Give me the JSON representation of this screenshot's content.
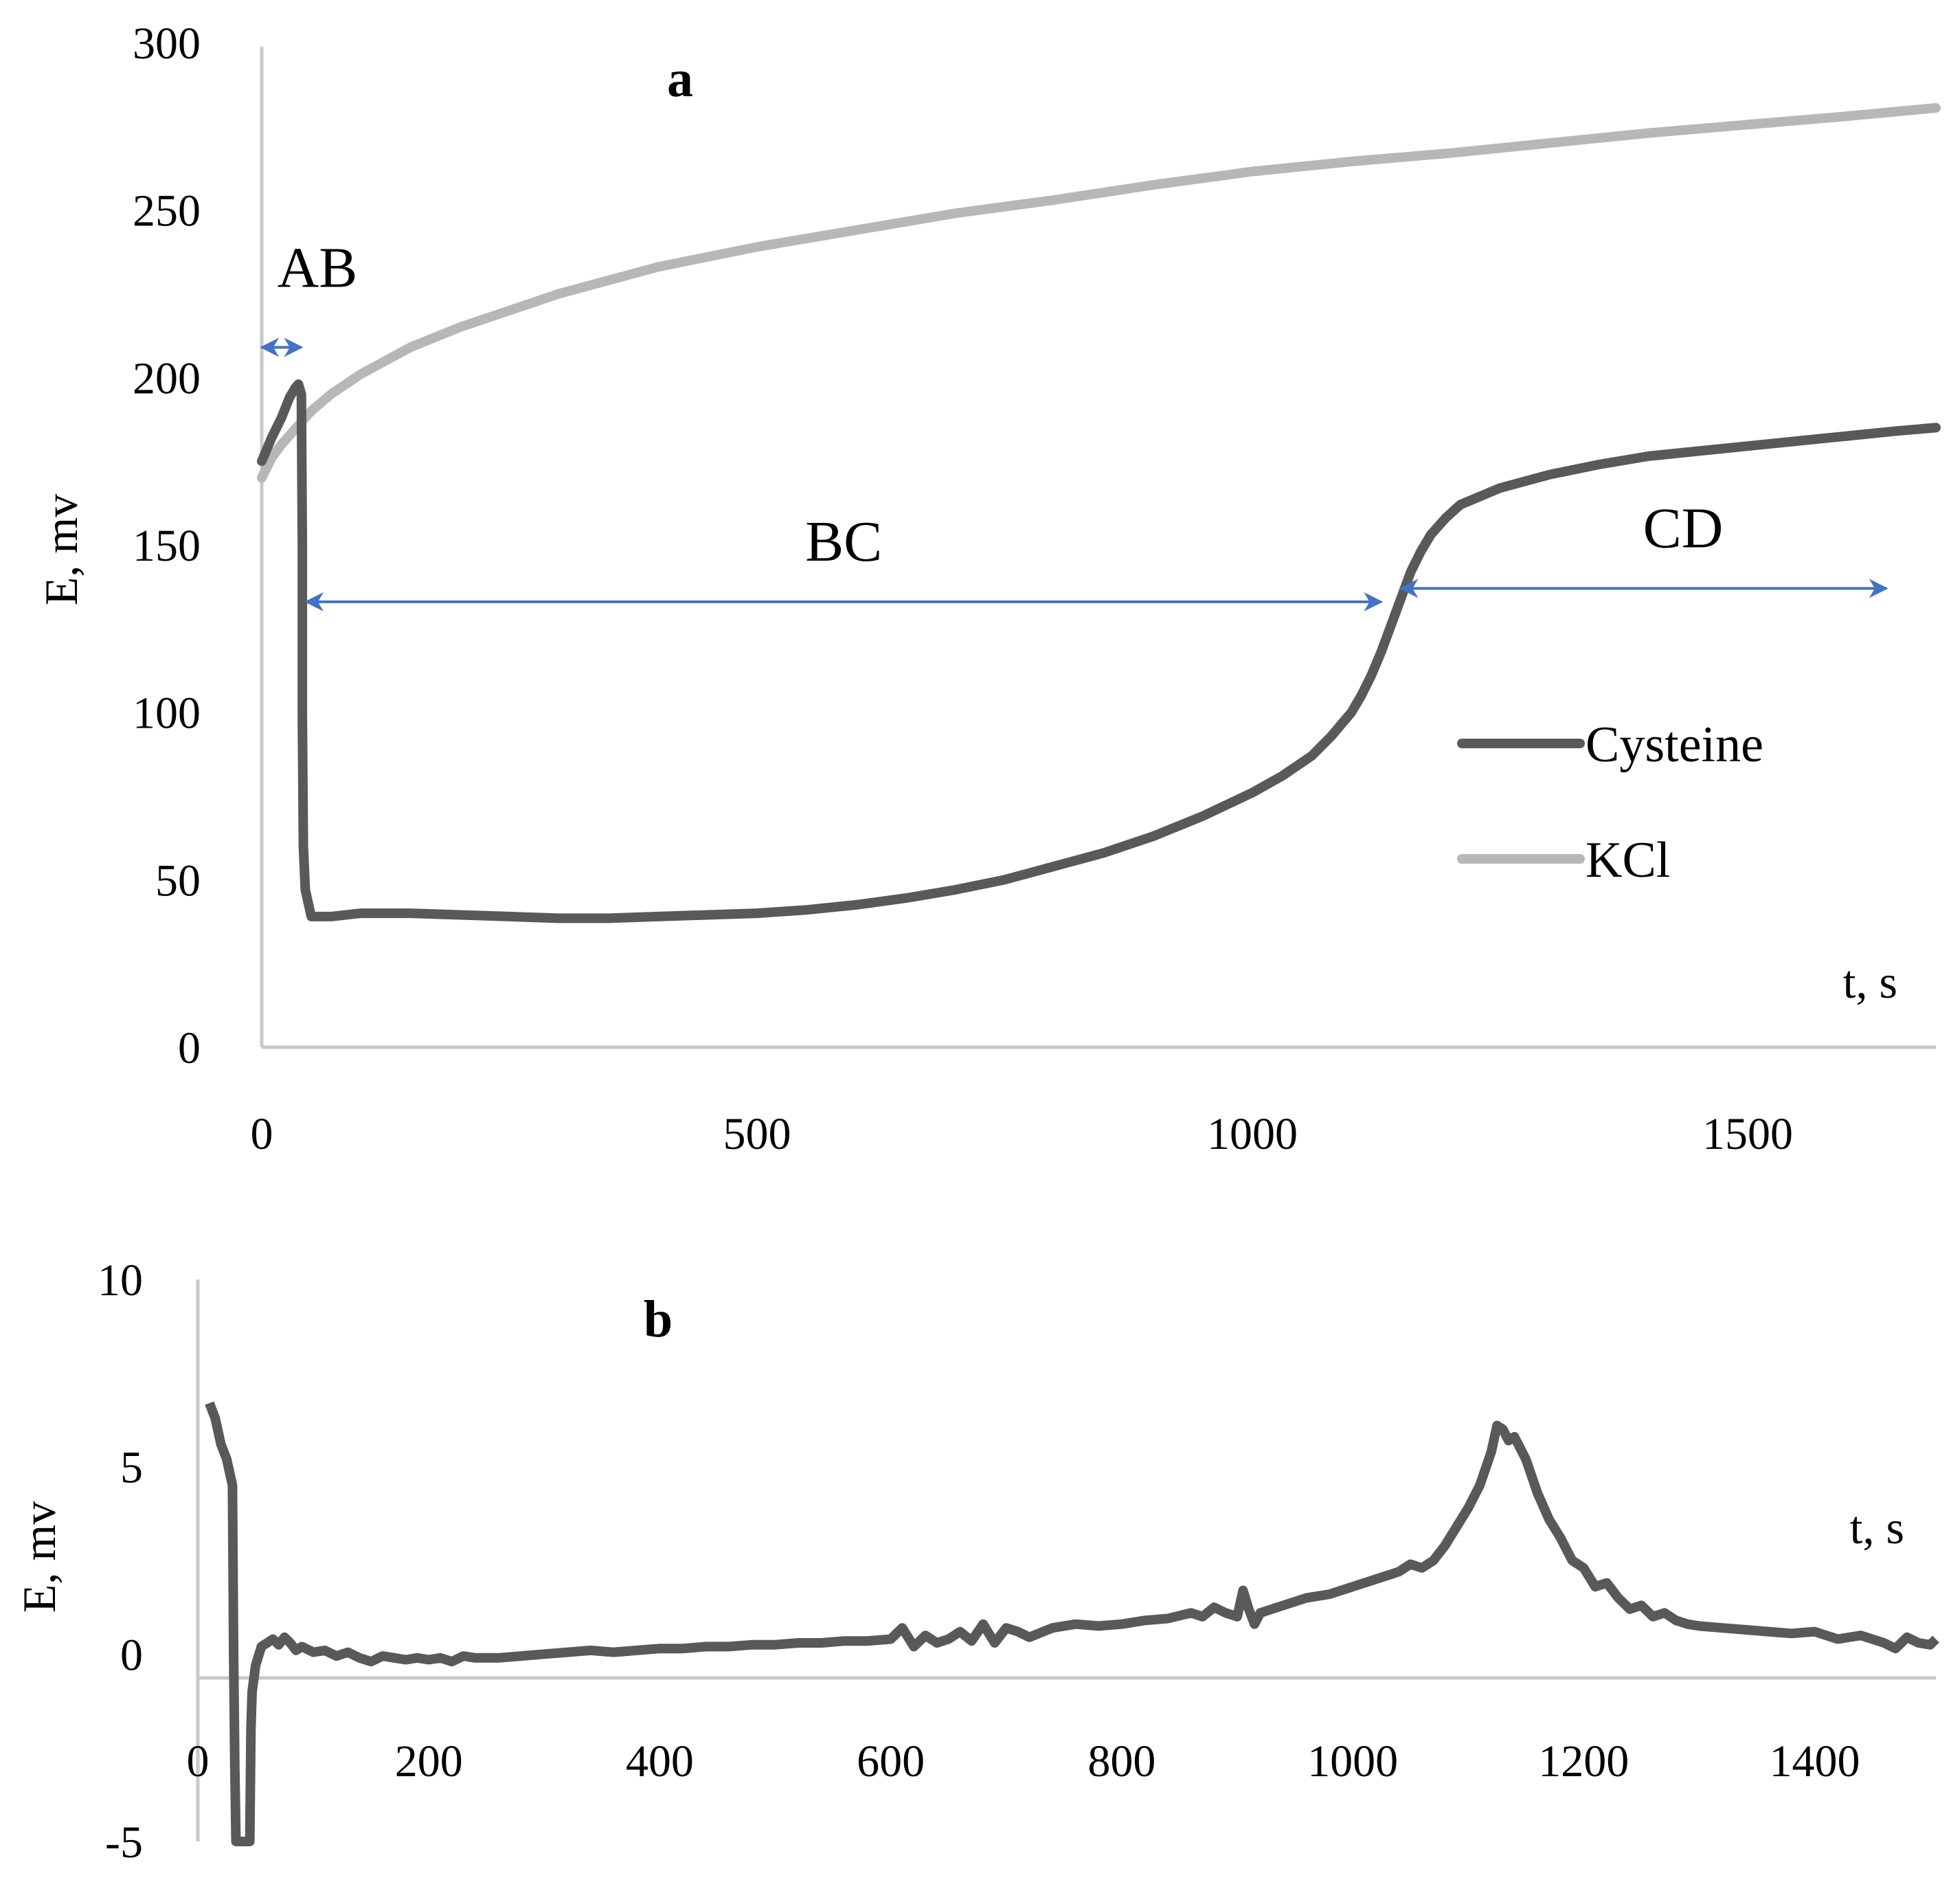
{
  "chart_data": [
    {
      "panel": "a",
      "type": "line",
      "xlabel": "t, s",
      "ylabel": "E, mv",
      "xlim": [
        0,
        1690
      ],
      "ylim": [
        0,
        300
      ],
      "x_ticks": [
        0,
        500,
        1000,
        1500
      ],
      "y_ticks": [
        0,
        50,
        100,
        150,
        200,
        250,
        300
      ],
      "legend": {
        "position": "right-middle",
        "entries": [
          "Cysteine",
          "KCl"
        ]
      },
      "series": [
        {
          "name": "Cysteine",
          "color": "#595959",
          "points": [
            [
              0,
              175
            ],
            [
              10,
              182
            ],
            [
              20,
              188
            ],
            [
              28,
              194
            ],
            [
              34,
              197
            ],
            [
              37,
              198
            ],
            [
              40,
              195
            ],
            [
              41,
              150
            ],
            [
              41,
              100
            ],
            [
              42,
              60
            ],
            [
              44,
              47
            ],
            [
              50,
              39
            ],
            [
              70,
              39
            ],
            [
              100,
              40
            ],
            [
              150,
              40
            ],
            [
              200,
              39.5
            ],
            [
              250,
              39
            ],
            [
              300,
              38.5
            ],
            [
              350,
              38.5
            ],
            [
              400,
              39
            ],
            [
              450,
              39.5
            ],
            [
              500,
              40
            ],
            [
              550,
              41
            ],
            [
              600,
              42.5
            ],
            [
              650,
              44.5
            ],
            [
              700,
              47
            ],
            [
              750,
              50
            ],
            [
              800,
              54
            ],
            [
              850,
              58
            ],
            [
              900,
              63
            ],
            [
              950,
              69
            ],
            [
              1000,
              76
            ],
            [
              1030,
              81
            ],
            [
              1060,
              87
            ],
            [
              1080,
              93
            ],
            [
              1100,
              100
            ],
            [
              1110,
              105
            ],
            [
              1120,
              111
            ],
            [
              1130,
              118
            ],
            [
              1140,
              126
            ],
            [
              1150,
              134
            ],
            [
              1160,
              142
            ],
            [
              1170,
              148
            ],
            [
              1180,
              153
            ],
            [
              1195,
              158
            ],
            [
              1210,
              162
            ],
            [
              1250,
              167
            ],
            [
              1300,
              171
            ],
            [
              1350,
              174
            ],
            [
              1400,
              176.5
            ],
            [
              1450,
              178
            ],
            [
              1500,
              179.5
            ],
            [
              1550,
              181
            ],
            [
              1600,
              182.5
            ],
            [
              1650,
              184
            ],
            [
              1690,
              185
            ]
          ]
        },
        {
          "name": "KCl",
          "color": "#b7b7b7",
          "points": [
            [
              0,
              170
            ],
            [
              10,
              176
            ],
            [
              20,
              180
            ],
            [
              35,
              185
            ],
            [
              50,
              190
            ],
            [
              70,
              195
            ],
            [
              100,
              201
            ],
            [
              150,
              209
            ],
            [
              200,
              215
            ],
            [
              250,
              220
            ],
            [
              300,
              225
            ],
            [
              350,
              229
            ],
            [
              400,
              233
            ],
            [
              450,
              236
            ],
            [
              500,
              239
            ],
            [
              600,
              244
            ],
            [
              700,
              249
            ],
            [
              800,
              253
            ],
            [
              900,
              257.5
            ],
            [
              1000,
              261.5
            ],
            [
              1100,
              264.5
            ],
            [
              1200,
              267
            ],
            [
              1300,
              270
            ],
            [
              1400,
              273
            ],
            [
              1500,
              275.5
            ],
            [
              1600,
              278
            ],
            [
              1690,
              280.5
            ]
          ]
        }
      ],
      "annotations": [
        {
          "label": "AB",
          "from": 0,
          "to": 40,
          "y": 209
        },
        {
          "label": "BC",
          "from": 45,
          "to": 1130,
          "y": 133
        },
        {
          "label": "CD",
          "from": 1150,
          "to": 1640,
          "y": 137
        }
      ]
    },
    {
      "panel": "b",
      "type": "line",
      "xlabel": "t, s",
      "ylabel": "E, mv",
      "xlim": [
        0,
        1505
      ],
      "ylim": [
        -5,
        10
      ],
      "x_ticks": [
        0,
        200,
        400,
        600,
        800,
        1000,
        1200,
        1400
      ],
      "y_ticks": [
        -5,
        0,
        5,
        10
      ],
      "series": [
        {
          "name": "Cysteine",
          "color": "#595959",
          "points": [
            [
              10,
              6.7
            ],
            [
              15,
              6.3
            ],
            [
              20,
              5.6
            ],
            [
              25,
              5.2
            ],
            [
              30,
              4.5
            ],
            [
              31,
              0
            ],
            [
              32,
              -3
            ],
            [
              33,
              -5
            ],
            [
              45,
              -5
            ],
            [
              46,
              -2
            ],
            [
              47,
              -1
            ],
            [
              50,
              -0.3
            ],
            [
              55,
              0.2
            ],
            [
              60,
              0.3
            ],
            [
              65,
              0.4
            ],
            [
              70,
              0.25
            ],
            [
              75,
              0.45
            ],
            [
              80,
              0.3
            ],
            [
              85,
              0.1
            ],
            [
              90,
              0.2
            ],
            [
              100,
              0.05
            ],
            [
              110,
              0.1
            ],
            [
              120,
              -0.05
            ],
            [
              130,
              0.05
            ],
            [
              140,
              -0.1
            ],
            [
              150,
              -0.2
            ],
            [
              160,
              -0.05
            ],
            [
              170,
              -0.1
            ],
            [
              180,
              -0.15
            ],
            [
              190,
              -0.1
            ],
            [
              200,
              -0.15
            ],
            [
              210,
              -0.1
            ],
            [
              220,
              -0.2
            ],
            [
              230,
              -0.05
            ],
            [
              240,
              -0.1
            ],
            [
              260,
              -0.1
            ],
            [
              280,
              -0.05
            ],
            [
              300,
              0
            ],
            [
              320,
              0.05
            ],
            [
              340,
              0.1
            ],
            [
              360,
              0.05
            ],
            [
              380,
              0.1
            ],
            [
              400,
              0.15
            ],
            [
              420,
              0.15
            ],
            [
              440,
              0.2
            ],
            [
              460,
              0.2
            ],
            [
              480,
              0.25
            ],
            [
              500,
              0.25
            ],
            [
              520,
              0.3
            ],
            [
              540,
              0.3
            ],
            [
              560,
              0.35
            ],
            [
              580,
              0.35
            ],
            [
              600,
              0.4
            ],
            [
              610,
              0.7
            ],
            [
              620,
              0.2
            ],
            [
              630,
              0.5
            ],
            [
              640,
              0.3
            ],
            [
              650,
              0.4
            ],
            [
              660,
              0.6
            ],
            [
              670,
              0.35
            ],
            [
              680,
              0.8
            ],
            [
              690,
              0.3
            ],
            [
              700,
              0.7
            ],
            [
              710,
              0.6
            ],
            [
              720,
              0.45
            ],
            [
              740,
              0.7
            ],
            [
              760,
              0.8
            ],
            [
              780,
              0.75
            ],
            [
              800,
              0.8
            ],
            [
              820,
              0.9
            ],
            [
              840,
              0.95
            ],
            [
              860,
              1.1
            ],
            [
              870,
              1.0
            ],
            [
              880,
              1.25
            ],
            [
              890,
              1.1
            ],
            [
              900,
              1.0
            ],
            [
              905,
              1.7
            ],
            [
              910,
              1.2
            ],
            [
              915,
              0.8
            ],
            [
              920,
              1.1
            ],
            [
              940,
              1.3
            ],
            [
              960,
              1.5
            ],
            [
              980,
              1.6
            ],
            [
              1000,
              1.8
            ],
            [
              1020,
              2.0
            ],
            [
              1040,
              2.2
            ],
            [
              1050,
              2.4
            ],
            [
              1060,
              2.3
            ],
            [
              1070,
              2.5
            ],
            [
              1080,
              2.9
            ],
            [
              1090,
              3.4
            ],
            [
              1100,
              3.9
            ],
            [
              1110,
              4.5
            ],
            [
              1120,
              5.4
            ],
            [
              1125,
              6.1
            ],
            [
              1130,
              6.0
            ],
            [
              1135,
              5.7
            ],
            [
              1140,
              5.8
            ],
            [
              1150,
              5.2
            ],
            [
              1160,
              4.3
            ],
            [
              1170,
              3.6
            ],
            [
              1180,
              3.1
            ],
            [
              1190,
              2.5
            ],
            [
              1200,
              2.3
            ],
            [
              1210,
              1.8
            ],
            [
              1220,
              1.9
            ],
            [
              1230,
              1.5
            ],
            [
              1240,
              1.2
            ],
            [
              1250,
              1.3
            ],
            [
              1260,
              1.0
            ],
            [
              1270,
              1.1
            ],
            [
              1280,
              0.9
            ],
            [
              1290,
              0.8
            ],
            [
              1300,
              0.75
            ],
            [
              1320,
              0.7
            ],
            [
              1340,
              0.65
            ],
            [
              1360,
              0.6
            ],
            [
              1380,
              0.55
            ],
            [
              1400,
              0.6
            ],
            [
              1420,
              0.4
            ],
            [
              1440,
              0.5
            ],
            [
              1460,
              0.3
            ],
            [
              1470,
              0.15
            ],
            [
              1480,
              0.45
            ],
            [
              1490,
              0.3
            ],
            [
              1500,
              0.25
            ],
            [
              1505,
              0.4
            ]
          ]
        }
      ]
    }
  ]
}
